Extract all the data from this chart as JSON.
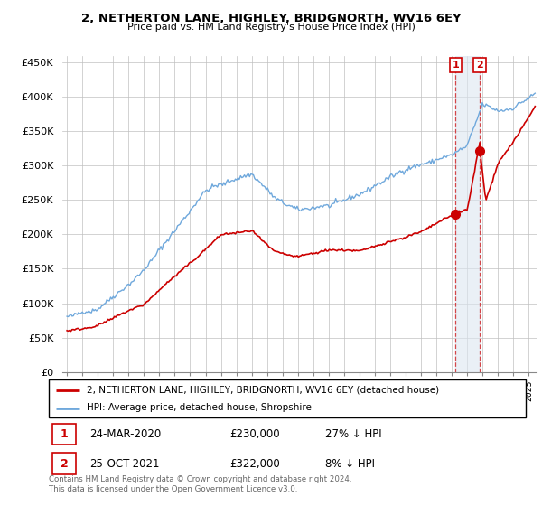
{
  "title": "2, NETHERTON LANE, HIGHLEY, BRIDGNORTH, WV16 6EY",
  "subtitle": "Price paid vs. HM Land Registry's House Price Index (HPI)",
  "legend_line1": "2, NETHERTON LANE, HIGHLEY, BRIDGNORTH, WV16 6EY (detached house)",
  "legend_line2": "HPI: Average price, detached house, Shropshire",
  "footer": "Contains HM Land Registry data © Crown copyright and database right 2024.\nThis data is licensed under the Open Government Licence v3.0.",
  "transaction1_date": "24-MAR-2020",
  "transaction1_price": "£230,000",
  "transaction1_note": "27% ↓ HPI",
  "transaction1_x": 2020.23,
  "transaction1_y": 230000,
  "transaction2_date": "25-OCT-2021",
  "transaction2_price": "£322,000",
  "transaction2_note": "8% ↓ HPI",
  "transaction2_x": 2021.81,
  "transaction2_y": 322000,
  "hpi_color": "#6fa8dc",
  "price_color": "#cc0000",
  "marker_color": "#cc0000",
  "shade_color": "#dce6f1",
  "ylim_min": 0,
  "ylim_max": 460000,
  "yticks": [
    0,
    50000,
    100000,
    150000,
    200000,
    250000,
    300000,
    350000,
    400000,
    450000
  ],
  "xmin": 1994.7,
  "xmax": 2025.5,
  "grid_color": "#c0c0c0"
}
